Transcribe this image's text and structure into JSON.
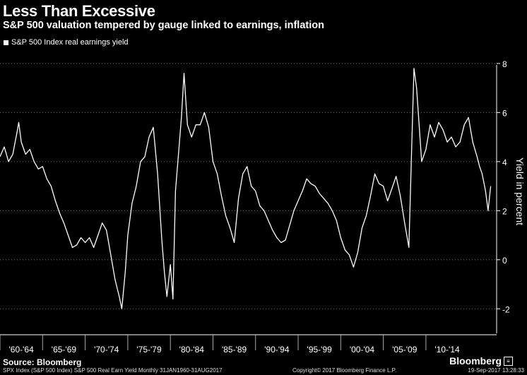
{
  "header": {
    "title": "Less Than Excessive",
    "subtitle": "S&P 500 valuation tempered by gauge linked to earnings, inflation",
    "legend_label": "S&P 500 Index real earnings yield"
  },
  "footer": {
    "source": "Source: Bloomberg",
    "brand": "Bloomberg",
    "series_info": "SPX Index (S&P 500 Index) S&P 500 Real Earn Yield  Monthly 31JAN1960-31AUG2017",
    "copyright": "Copyright© 2017 Bloomberg Finance L.P.",
    "timestamp": "19-Sep-2017 13:28:33"
  },
  "colors": {
    "background": "#000000",
    "line": "#ffffff",
    "axis": "#ffffff",
    "grid": "#777777"
  },
  "chart_data": {
    "type": "line",
    "title": "Less Than Excessive",
    "subtitle": "S&P 500 valuation tempered by gauge linked to earnings, inflation",
    "ylabel": "Yield in percent",
    "xlabel": "",
    "ylim": [
      -3,
      8.4
    ],
    "xlim": [
      1960,
      2018.3
    ],
    "yticks": [
      -2,
      0,
      2,
      4,
      6,
      8
    ],
    "ytick_labels": [
      "-2",
      "0",
      "2",
      "4",
      "6",
      "8"
    ],
    "xtick_labels": [
      "'60-'64",
      "'65-'69",
      "'70-'74",
      "'75-'79",
      "'80-'84",
      "'85-'89",
      "'90-'94",
      "'95-'99",
      "'00-'04",
      "'05-'09",
      "'10-'14"
    ],
    "grid": "horizontal dotted",
    "legend": "top-left",
    "series": [
      {
        "name": "S&P 500 Index real earnings yield",
        "x": [
          1960.0,
          1960.5,
          1961.0,
          1961.5,
          1962.0,
          1962.2,
          1962.5,
          1963.0,
          1963.5,
          1964.0,
          1964.5,
          1965.0,
          1965.5,
          1966.0,
          1966.5,
          1967.0,
          1967.5,
          1968.0,
          1968.5,
          1969.0,
          1969.5,
          1970.0,
          1970.5,
          1971.0,
          1971.5,
          1972.0,
          1972.5,
          1973.0,
          1973.5,
          1974.0,
          1974.3,
          1974.7,
          1975.0,
          1975.5,
          1976.0,
          1976.5,
          1977.0,
          1977.5,
          1978.0,
          1978.5,
          1979.0,
          1979.3,
          1979.6,
          1980.0,
          1980.3,
          1980.6,
          1981.0,
          1981.3,
          1981.6,
          1982.0,
          1982.5,
          1983.0,
          1983.5,
          1984.0,
          1984.5,
          1985.0,
          1985.5,
          1986.0,
          1986.5,
          1987.0,
          1987.5,
          1988.0,
          1988.5,
          1989.0,
          1989.5,
          1990.0,
          1990.5,
          1991.0,
          1991.5,
          1992.0,
          1992.5,
          1993.0,
          1993.5,
          1994.0,
          1994.5,
          1995.0,
          1995.5,
          1996.0,
          1996.5,
          1997.0,
          1997.5,
          1998.0,
          1998.5,
          1999.0,
          1999.5,
          2000.0,
          2000.5,
          2001.0,
          2001.5,
          2002.0,
          2002.5,
          2003.0,
          2003.5,
          2004.0,
          2004.5,
          2005.0,
          2005.5,
          2006.0,
          2006.5,
          2007.0,
          2007.5,
          2008.0,
          2008.3,
          2008.6,
          2008.9,
          2009.2,
          2009.5,
          2010.0,
          2010.5,
          2011.0,
          2011.5,
          2012.0,
          2012.5,
          2013.0,
          2013.5,
          2014.0,
          2014.5,
          2015.0,
          2015.5,
          2016.0,
          2016.3,
          2016.6,
          2017.0,
          2017.3,
          2017.6
        ],
        "values": [
          4.2,
          4.6,
          4.0,
          4.3,
          5.2,
          5.6,
          4.8,
          4.3,
          4.5,
          4.0,
          3.7,
          3.8,
          3.3,
          3.0,
          2.4,
          1.9,
          1.5,
          1.0,
          0.5,
          0.6,
          0.9,
          0.7,
          0.9,
          0.5,
          1.0,
          1.5,
          1.2,
          0.2,
          -0.8,
          -1.5,
          -2.0,
          -0.5,
          1.0,
          2.3,
          3.0,
          4.0,
          4.2,
          5.0,
          5.4,
          3.5,
          0.8,
          -0.5,
          -1.5,
          -0.2,
          -1.6,
          2.8,
          4.5,
          5.8,
          7.6,
          5.5,
          5.0,
          5.5,
          5.5,
          6.0,
          5.4,
          4.0,
          3.5,
          2.6,
          1.8,
          1.3,
          0.7,
          2.5,
          3.5,
          3.8,
          3.0,
          2.8,
          2.2,
          2.0,
          1.6,
          1.2,
          0.9,
          0.7,
          0.8,
          1.4,
          2.0,
          2.4,
          2.8,
          3.3,
          3.1,
          3.0,
          2.7,
          2.5,
          2.3,
          2.0,
          1.6,
          0.9,
          0.4,
          0.2,
          -0.3,
          0.3,
          1.3,
          1.8,
          2.6,
          3.5,
          3.1,
          3.0,
          2.4,
          2.9,
          3.4,
          2.6,
          1.5,
          0.5,
          4.2,
          7.8,
          7.0,
          5.5,
          4.0,
          4.5,
          5.5,
          5.0,
          5.6,
          5.3,
          4.8,
          5.0,
          4.6,
          4.8,
          5.5,
          5.8,
          4.8,
          4.2,
          3.8,
          3.5,
          2.8,
          2.0,
          3.0
        ]
      }
    ]
  }
}
